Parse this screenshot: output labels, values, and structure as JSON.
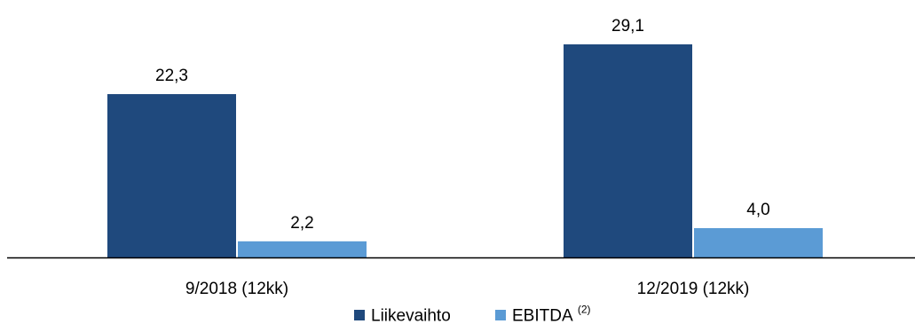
{
  "chart_data": {
    "type": "bar",
    "title": "",
    "xlabel": "",
    "ylabel": "",
    "categories": [
      "9/2018 (12kk)",
      "12/2019 (12kk)"
    ],
    "series": [
      {
        "name": "Liikevaihto",
        "values": [
          22.3,
          29.1
        ],
        "labels": [
          "22,3",
          "29,1"
        ],
        "color": "#1F497D"
      },
      {
        "name": "EBITDA",
        "values": [
          2.2,
          4.0
        ],
        "labels": [
          "2,2",
          "4,0"
        ],
        "color": "#5B9BD5"
      }
    ],
    "legend": {
      "position": "bottom",
      "items": [
        {
          "label": "Liikevaihto",
          "superscript": ""
        },
        {
          "label": "EBITDA",
          "superscript": "(2)"
        }
      ]
    },
    "ylim": [
      0,
      30
    ],
    "grid": false
  }
}
